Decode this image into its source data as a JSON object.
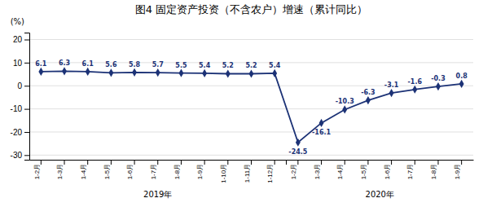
{
  "chart_data": {
    "type": "line",
    "title": "图4   固定资产投资（不含农户）增速（累计同比）",
    "y_label": "(%)",
    "categories": [
      "1-2月",
      "1-3月",
      "1-4月",
      "1-5月",
      "1-6月",
      "1-7月",
      "1-8月",
      "1-9月",
      "1-10月",
      "1-11月",
      "1-12月",
      "1-2月",
      "1-3月",
      "1-4月",
      "1-5月",
      "1-6月",
      "1-7月",
      "1-8月",
      "1-9月"
    ],
    "values": [
      6.1,
      6.3,
      6.1,
      5.6,
      5.8,
      5.7,
      5.5,
      5.4,
      5.2,
      5.2,
      5.4,
      -24.5,
      -16.1,
      -10.3,
      -6.3,
      -3.1,
      -1.6,
      -0.3,
      0.8
    ],
    "annotations": [
      "2019年",
      "2020年"
    ],
    "ylim": [
      -32,
      23
    ],
    "yticks": [
      -30,
      -20,
      -10,
      0,
      10,
      20
    ],
    "color": "#1c3276",
    "marker": "diamond",
    "data_labels": true,
    "grid": true
  }
}
